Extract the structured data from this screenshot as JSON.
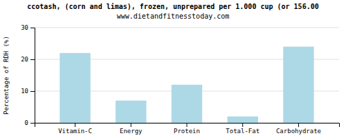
{
  "chart_data": {
    "type": "bar",
    "title": "ccotash, (corn and limas), frozen, unprepared per 1.000 cup (or 156.00",
    "subtitle": "www.dietandfitnesstoday.com",
    "categories": [
      "Vitamin-C",
      "Energy",
      "Protein",
      "Total-Fat",
      "Carbohydrate"
    ],
    "values": [
      22,
      7,
      12,
      2,
      24
    ],
    "color": "#add8e6",
    "y_label": "Percentage of RDH (%)",
    "ylim": [
      0,
      30
    ],
    "yticks": [
      0,
      10,
      20,
      30
    ],
    "grid": true
  }
}
